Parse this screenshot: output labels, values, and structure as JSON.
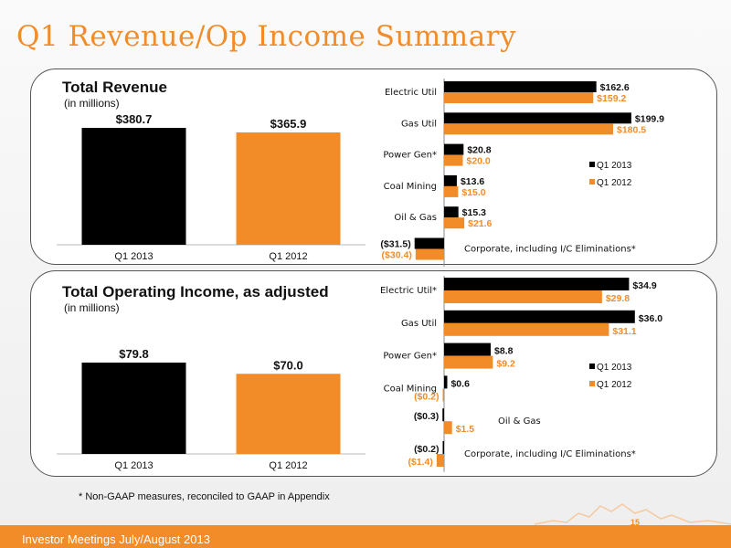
{
  "slide": {
    "title": "Q1 Revenue/Op Income Summary",
    "footnote": "* Non-GAAP measures, reconciled to GAAP in Appendix",
    "footer_text": "Investor Meetings   July/August 2013",
    "page_number": "15",
    "colors": {
      "accent": "#f28c28",
      "series_2013": "#000000",
      "series_2012": "#f28c28"
    }
  },
  "panels": [
    {
      "title": "Total Revenue",
      "subtitle": "(in millions)"
    },
    {
      "title": "Total Operating Income, as adjusted",
      "subtitle": "(in millions)"
    }
  ],
  "chart_data": [
    {
      "type": "bar",
      "title": "Total Revenue",
      "categories": [
        "Q1 2013",
        "Q1 2012"
      ],
      "values": [
        380.7,
        365.9
      ],
      "labels": [
        "$380.7",
        "$365.9"
      ]
    },
    {
      "type": "bar",
      "orientation": "horizontal",
      "categories": [
        "Electric Util",
        "Gas Util",
        "Power Gen*",
        "Coal Mining",
        "Oil & Gas",
        "Corporate, including I/C Eliminations*"
      ],
      "series": [
        {
          "name": "Q1 2013",
          "values": [
            162.6,
            199.9,
            20.8,
            13.6,
            15.3,
            -31.5
          ],
          "labels": [
            "$162.6",
            "$199.9",
            "$20.8",
            "$13.6",
            "$15.3",
            "($31.5)"
          ]
        },
        {
          "name": "Q1 2012",
          "values": [
            159.2,
            180.5,
            20.0,
            15.0,
            21.6,
            -30.4
          ],
          "labels": [
            "$159.2",
            "$180.5",
            "$20.0",
            "$15.0",
            "$21.6",
            "($30.4)"
          ]
        }
      ],
      "legend": "right"
    },
    {
      "type": "bar",
      "title": "Total Operating Income, as adjusted",
      "categories": [
        "Q1 2013",
        "Q1 2012"
      ],
      "values": [
        79.8,
        70.0
      ],
      "labels": [
        "$79.8",
        "$70.0"
      ]
    },
    {
      "type": "bar",
      "orientation": "horizontal",
      "categories": [
        "Electric Util*",
        "Gas Util",
        "Power Gen*",
        "Coal Mining",
        "Oil & Gas",
        "Corporate, including I/C Eliminations*"
      ],
      "series": [
        {
          "name": "Q1 2013",
          "values": [
            34.9,
            36.0,
            8.8,
            0.6,
            -0.3,
            -0.2
          ],
          "labels": [
            "$34.9",
            "$36.0",
            "$8.8",
            "$0.6",
            "($0.3)",
            "($0.2)"
          ]
        },
        {
          "name": "Q1 2012",
          "values": [
            29.8,
            31.1,
            9.2,
            -0.2,
            1.5,
            -1.4
          ],
          "labels": [
            "$29.8",
            "$31.1",
            "$9.2",
            "($0.2)",
            "$1.5",
            "($1.4)"
          ]
        }
      ],
      "legend": "right"
    }
  ]
}
